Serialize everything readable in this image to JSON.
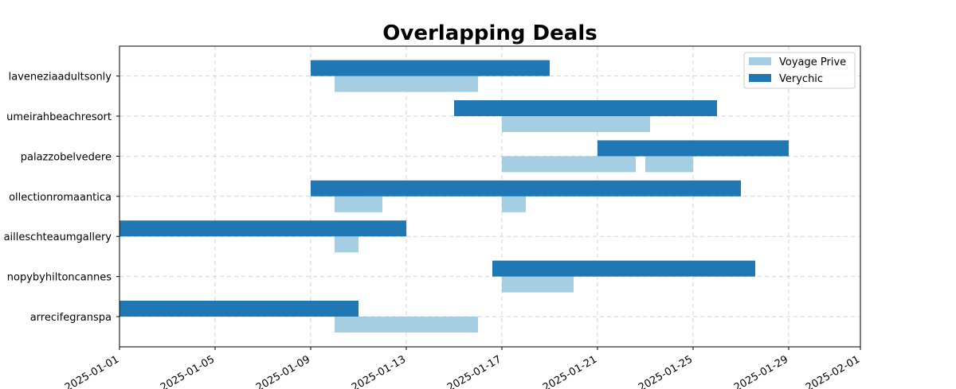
{
  "chart_data": {
    "type": "gantt",
    "title": "Overlapping Deals",
    "xlabel": "",
    "ylabel": "",
    "x_range": [
      "2025-01-01",
      "2025-02-01"
    ],
    "x_ticks": [
      "2025-01-01",
      "2025-01-05",
      "2025-01-09",
      "2025-01-13",
      "2025-01-17",
      "2025-01-21",
      "2025-01-25",
      "2025-01-29",
      "2025-02-01"
    ],
    "grid": true,
    "legend_position": "top-right",
    "colors": {
      "Voyage Prive": "#a6cee3",
      "Verychic": "#1f78b4"
    },
    "categories": [
      "arrecifegranspa",
      "canopybyhiltoncannes",
      "chateaumgallerycollection",
      "collectionromaantica",
      "palazzobelvedere",
      "jumeirahbeachresort",
      "palaveneziaadultsonly"
    ],
    "category_labels": [
      "arrecifegranspa",
      "nopybyhiltoncannes",
      "ailleschteaumgallery",
      "ollectionromaantica",
      "palazzobelvedere",
      "umeirahbeachresort",
      "laveneziaadultsonly"
    ],
    "series": [
      {
        "name": "Voyage Prive",
        "deals": [
          {
            "category": "arrecifegranspa",
            "start": "2025-01-10",
            "end": "2025-01-16"
          },
          {
            "category": "canopybyhiltoncannes",
            "start": "2025-01-17",
            "end": "2025-01-20"
          },
          {
            "category": "chateaumgallerycollection",
            "start": "2025-01-10",
            "end": "2025-01-11"
          },
          {
            "category": "collectionromaantica",
            "start": "2025-01-10",
            "end": "2025-01-12"
          },
          {
            "category": "collectionromaantica",
            "start": "2025-01-17",
            "end": "2025-01-18"
          },
          {
            "category": "palazzobelvedere",
            "start": "2025-01-17",
            "end": "2025-01-22.6"
          },
          {
            "category": "palazzobelvedere",
            "start": "2025-01-23",
            "end": "2025-01-25"
          },
          {
            "category": "jumeirahbeachresort",
            "start": "2025-01-17",
            "end": "2025-01-23.2"
          },
          {
            "category": "palaveneziaadultsonly",
            "start": "2025-01-10",
            "end": "2025-01-16"
          }
        ]
      },
      {
        "name": "Verychic",
        "deals": [
          {
            "category": "arrecifegranspa",
            "start": "2025-01-01",
            "end": "2025-01-11"
          },
          {
            "category": "canopybyhiltoncannes",
            "start": "2025-01-16.6",
            "end": "2025-01-27.6"
          },
          {
            "category": "chateaumgallerycollection",
            "start": "2025-01-01",
            "end": "2025-01-13"
          },
          {
            "category": "collectionromaantica",
            "start": "2025-01-09",
            "end": "2025-01-27"
          },
          {
            "category": "palazzobelvedere",
            "start": "2025-01-21",
            "end": "2025-01-29"
          },
          {
            "category": "jumeirahbeachresort",
            "start": "2025-01-15",
            "end": "2025-01-26"
          },
          {
            "category": "palaveneziaadultsonly",
            "start": "2025-01-09",
            "end": "2025-01-19"
          }
        ]
      }
    ]
  }
}
